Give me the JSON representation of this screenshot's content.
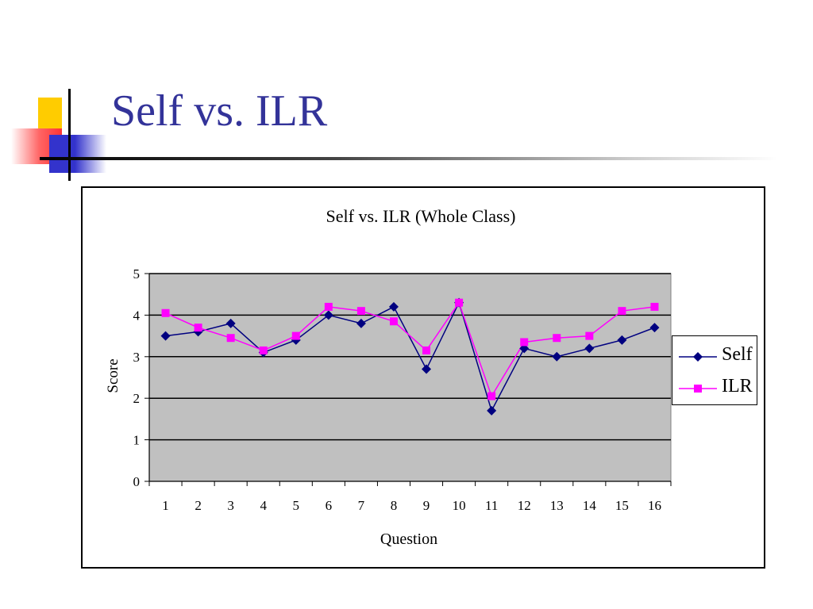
{
  "slide": {
    "title": "Self vs. ILR"
  },
  "colors": {
    "title": "#333399",
    "plot_bg": "#c0c0c0",
    "self": "#000080",
    "ilr": "#ff00ff"
  },
  "chart_data": {
    "type": "line",
    "title": "Self vs. ILR (Whole Class)",
    "xlabel": "Question",
    "ylabel": "Score",
    "ylim": [
      0,
      5
    ],
    "yticks": [
      0,
      1,
      2,
      3,
      4,
      5
    ],
    "grid": true,
    "legend_position": "right",
    "categories": [
      "1",
      "2",
      "3",
      "4",
      "5",
      "6",
      "7",
      "8",
      "9",
      "10",
      "11",
      "12",
      "13",
      "14",
      "15",
      "16"
    ],
    "series": [
      {
        "name": "Self",
        "color": "#000080",
        "marker": "diamond",
        "values": [
          3.5,
          3.6,
          3.8,
          3.1,
          3.4,
          4.0,
          3.8,
          4.2,
          2.7,
          4.3,
          1.7,
          3.2,
          3.0,
          3.2,
          3.4,
          3.7
        ]
      },
      {
        "name": "ILR",
        "color": "#ff00ff",
        "marker": "square",
        "values": [
          4.05,
          3.7,
          3.45,
          3.15,
          3.5,
          4.2,
          4.1,
          3.85,
          3.15,
          4.3,
          2.05,
          3.35,
          3.45,
          3.5,
          4.1,
          4.2
        ]
      }
    ]
  }
}
